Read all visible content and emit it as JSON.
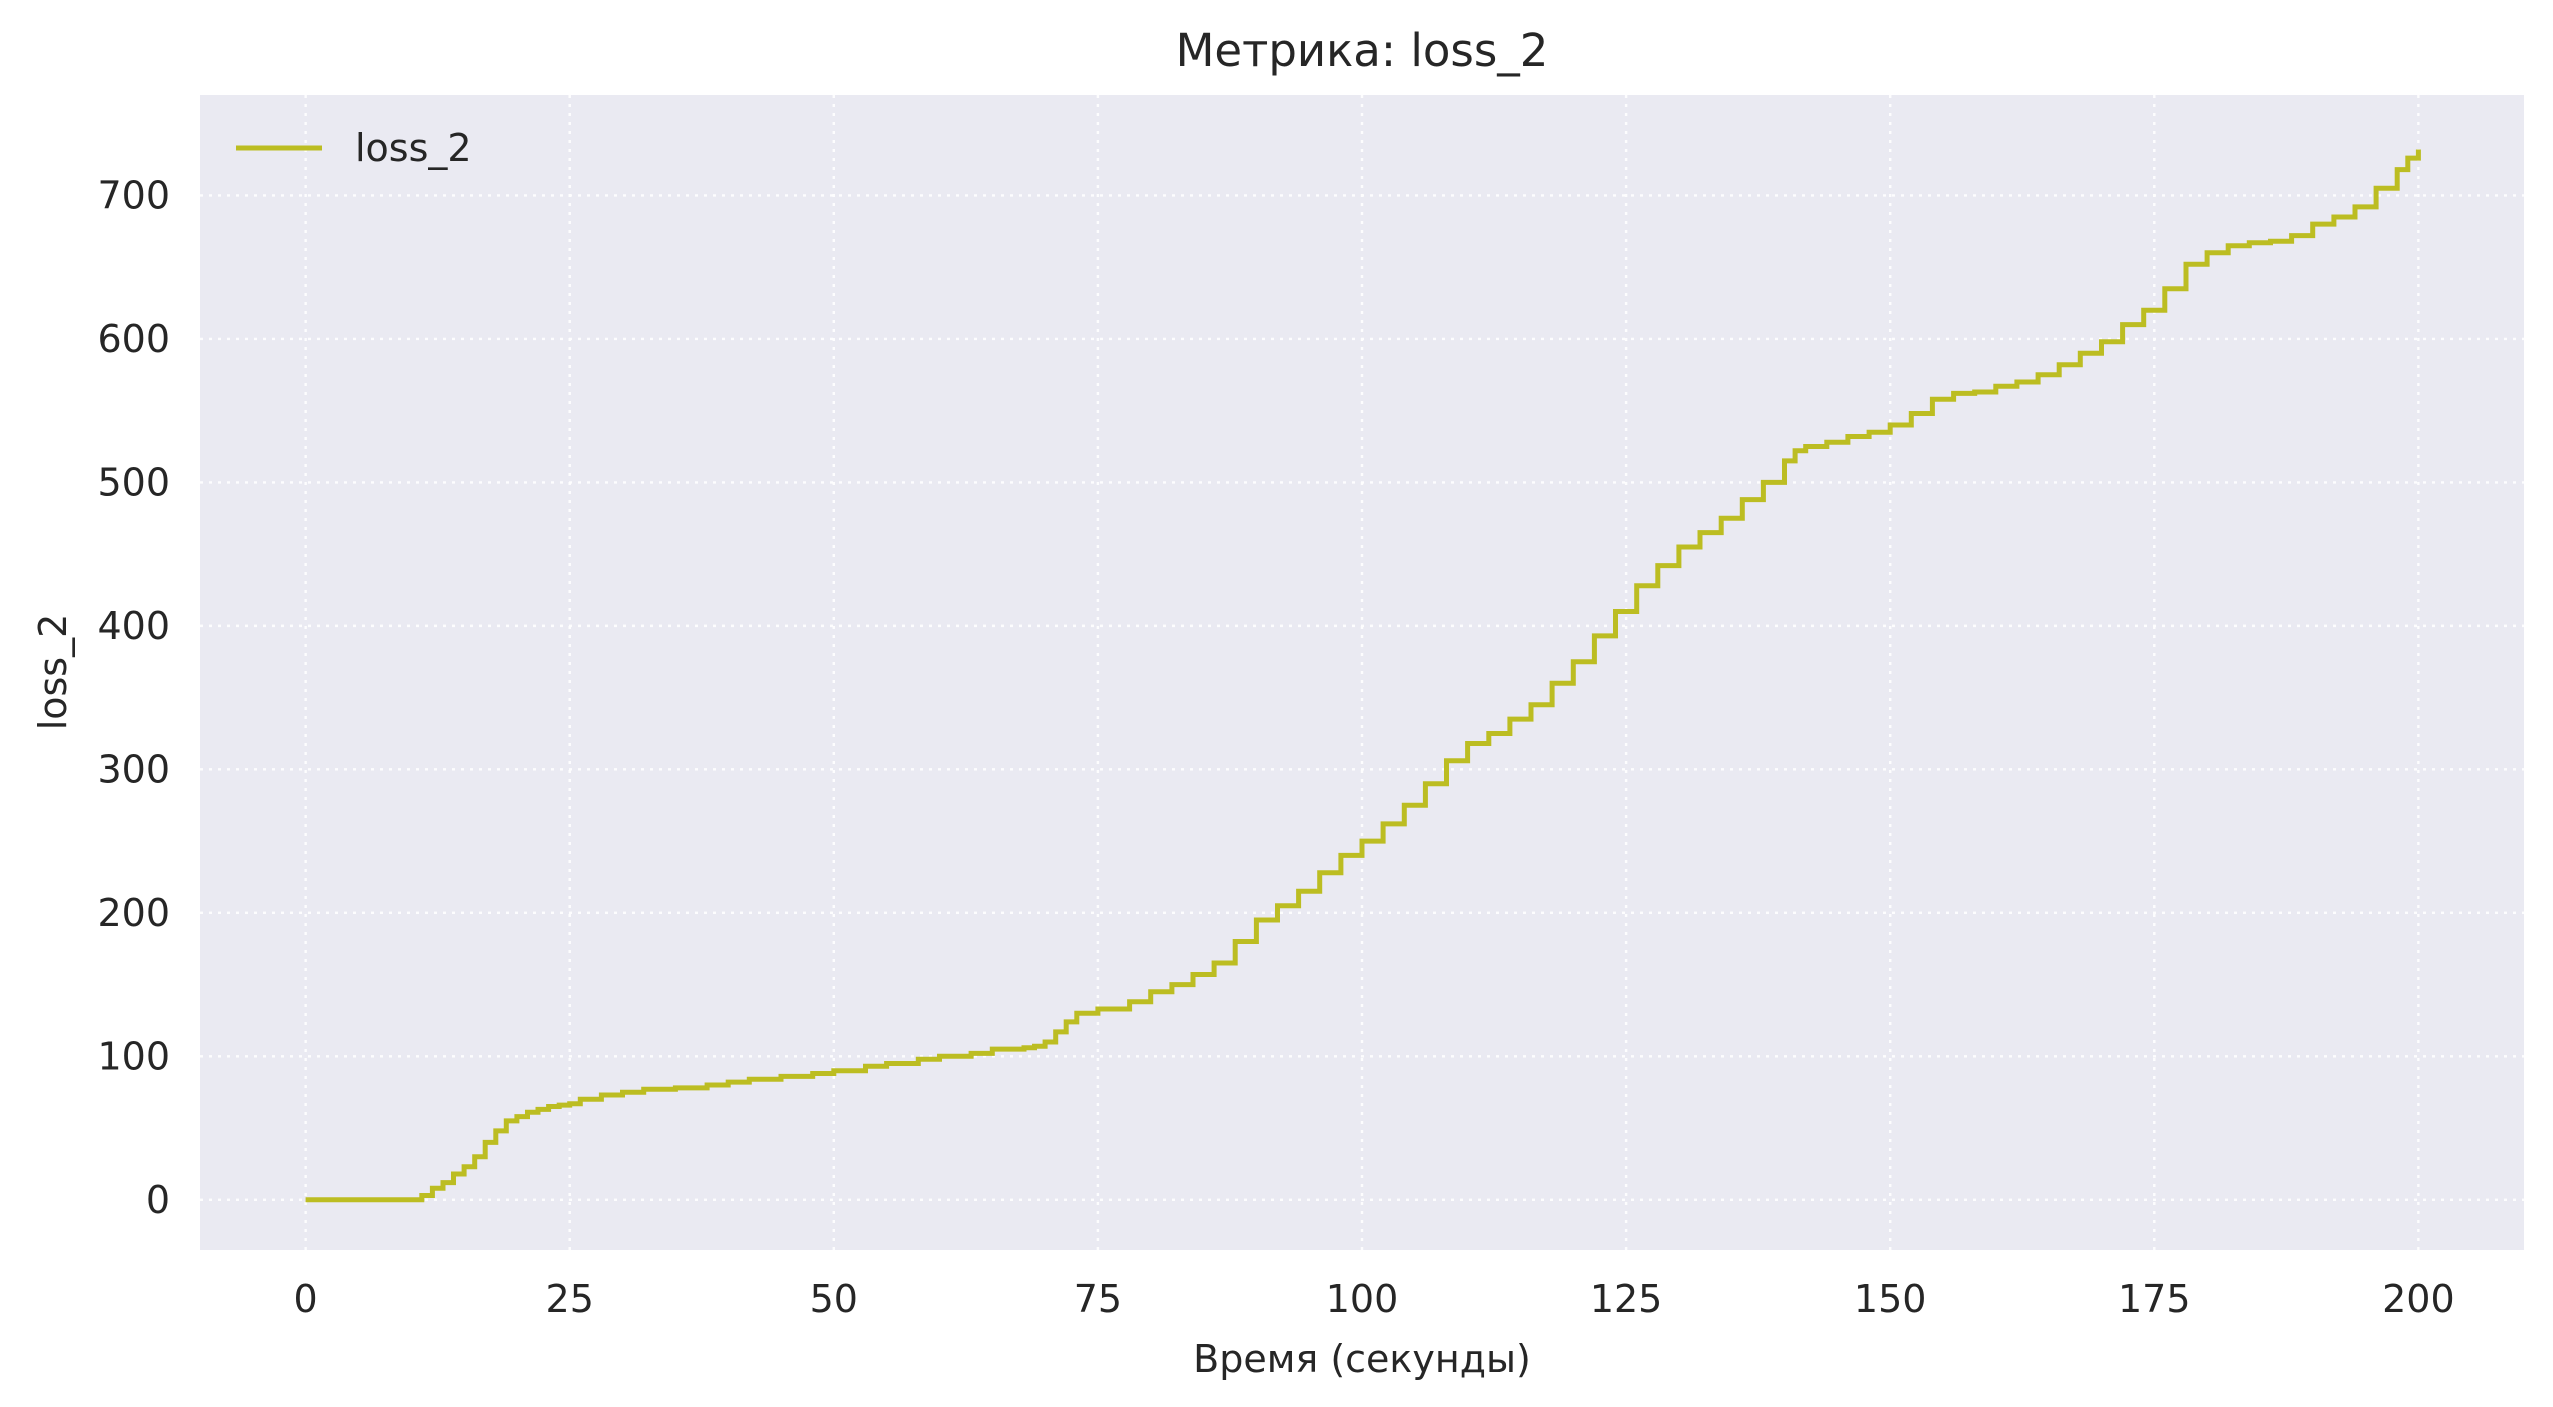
{
  "chart_data": {
    "type": "line",
    "step": true,
    "title": "Метрика: loss_2",
    "xlabel": "Время (секунды)",
    "ylabel": "loss_2",
    "xlim": [
      -10,
      210
    ],
    "ylim": [
      -35,
      770
    ],
    "xticks": [
      0,
      25,
      50,
      75,
      100,
      125,
      150,
      175,
      200
    ],
    "yticks": [
      0,
      100,
      200,
      300,
      400,
      500,
      600,
      700
    ],
    "grid": true,
    "legend_position": "top-left",
    "colors": {
      "background": "#eaeaf2",
      "series": "#bcbd22",
      "grid": "#ffffff"
    },
    "series": [
      {
        "name": "loss_2",
        "x": [
          0,
          5,
          10,
          11,
          12,
          13,
          14,
          15,
          16,
          17,
          18,
          19,
          20,
          21,
          22,
          23,
          24,
          25,
          26,
          28,
          30,
          32,
          35,
          38,
          40,
          42,
          45,
          48,
          50,
          53,
          55,
          58,
          60,
          63,
          65,
          68,
          69,
          70,
          71,
          72,
          73,
          75,
          78,
          80,
          82,
          84,
          86,
          88,
          90,
          92,
          94,
          96,
          98,
          100,
          102,
          104,
          106,
          108,
          110,
          112,
          114,
          116,
          118,
          120,
          122,
          124,
          126,
          128,
          130,
          132,
          134,
          136,
          138,
          140,
          141,
          142,
          144,
          146,
          148,
          150,
          152,
          154,
          156,
          158,
          160,
          162,
          164,
          166,
          168,
          170,
          172,
          174,
          176,
          178,
          180,
          182,
          184,
          186,
          188,
          190,
          192,
          194,
          196,
          198,
          199,
          200
        ],
        "y": [
          0,
          0,
          0,
          3,
          8,
          12,
          18,
          23,
          30,
          40,
          48,
          55,
          58,
          61,
          63,
          65,
          66,
          67,
          70,
          73,
          75,
          77,
          78,
          80,
          82,
          84,
          86,
          88,
          90,
          93,
          95,
          98,
          100,
          102,
          105,
          106,
          107,
          110,
          117,
          124,
          130,
          133,
          138,
          145,
          150,
          157,
          165,
          180,
          195,
          205,
          215,
          228,
          240,
          250,
          262,
          275,
          290,
          306,
          318,
          325,
          335,
          345,
          360,
          375,
          393,
          410,
          428,
          442,
          455,
          465,
          475,
          488,
          500,
          515,
          522,
          525,
          528,
          532,
          535,
          540,
          548,
          558,
          562,
          563,
          567,
          570,
          575,
          582,
          590,
          598,
          610,
          620,
          635,
          652,
          660,
          665,
          667,
          668,
          672,
          680,
          685,
          692,
          705,
          718,
          726,
          732
        ]
      }
    ]
  }
}
